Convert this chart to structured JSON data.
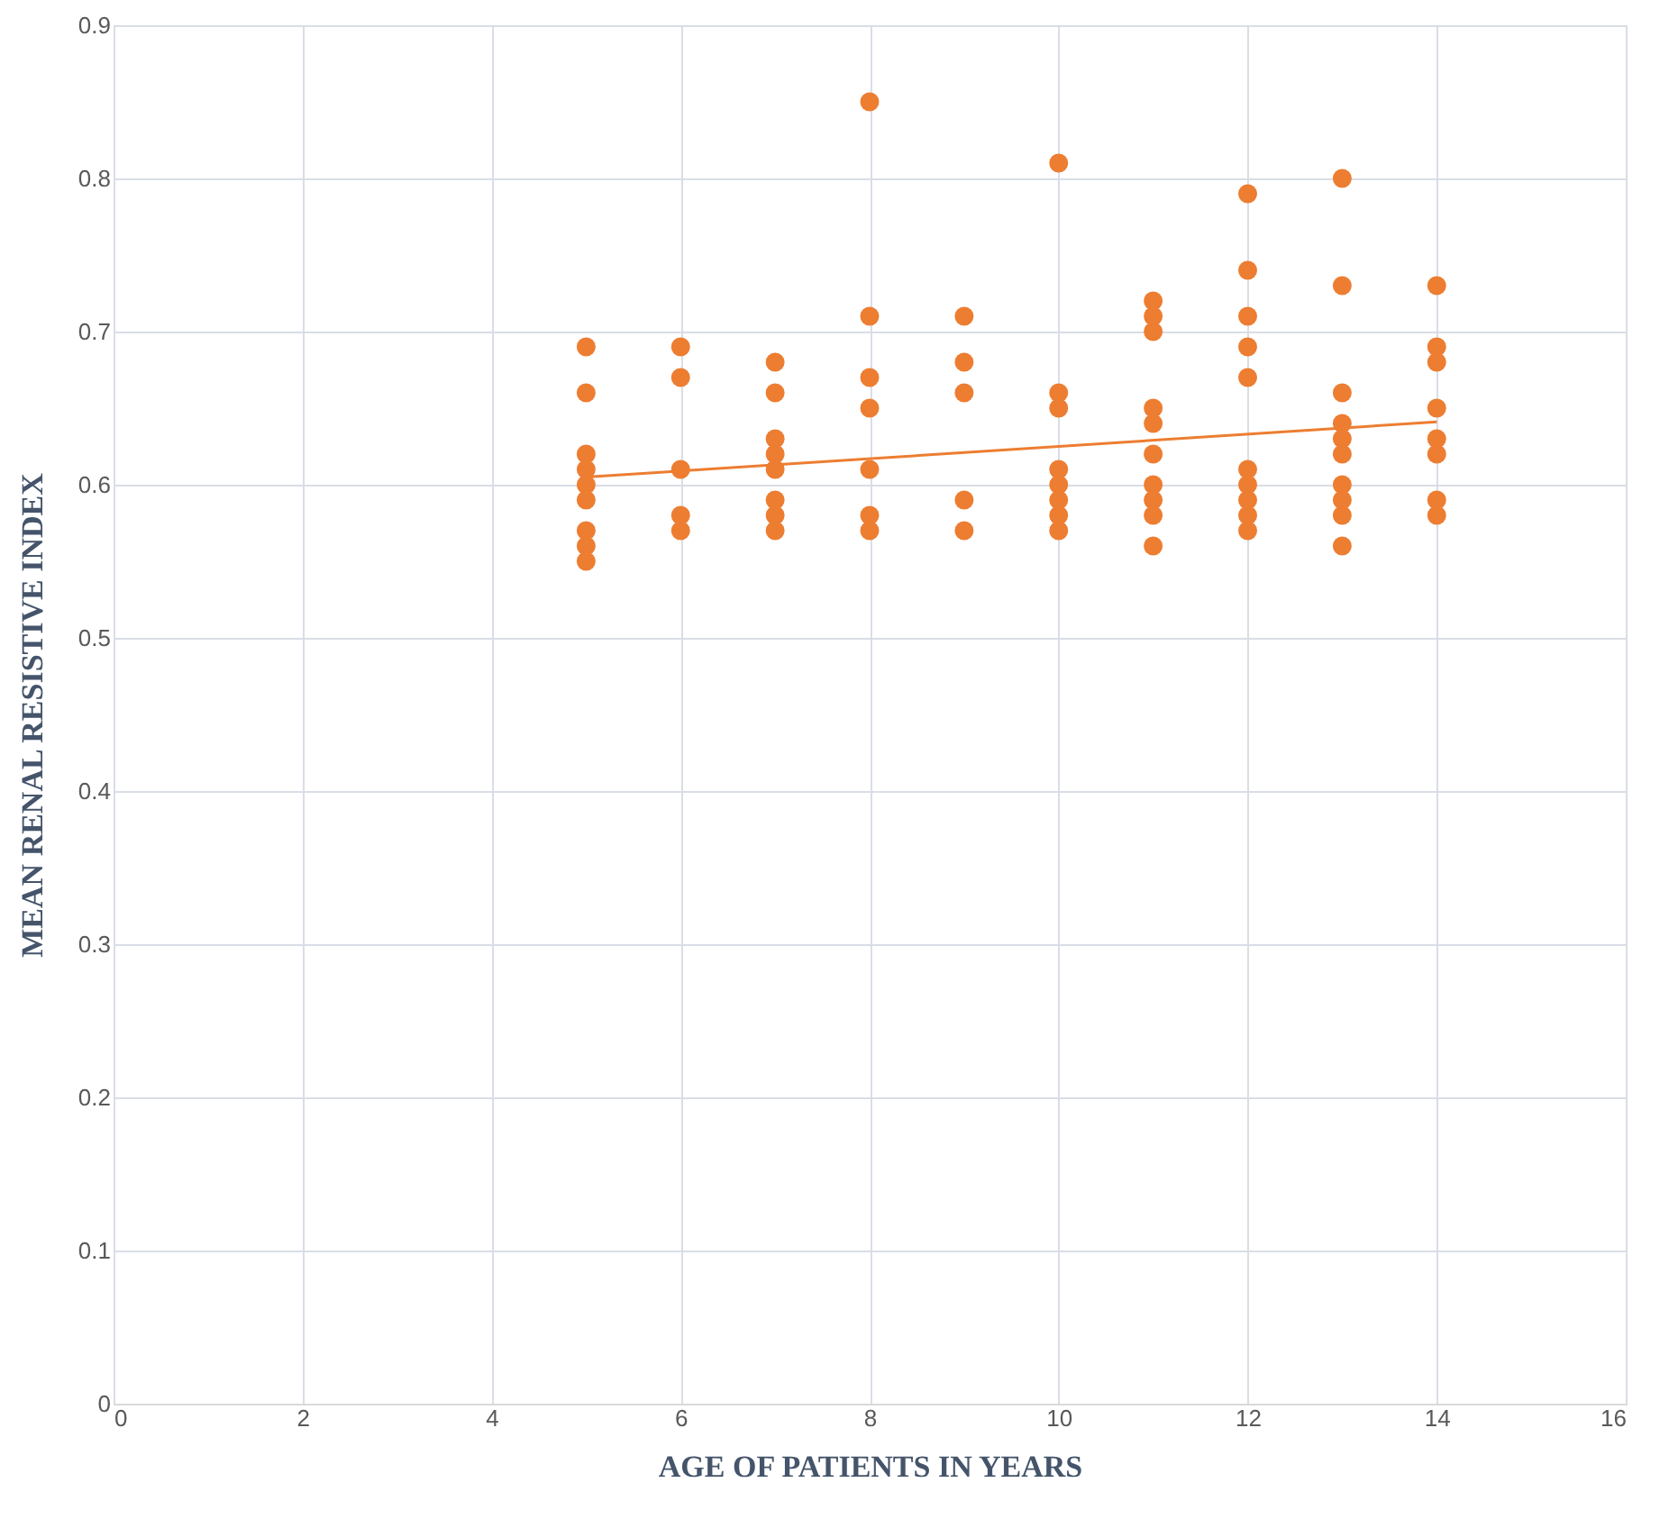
{
  "chart_data": {
    "type": "scatter",
    "xlabel": "AGE OF PATIENTS IN YEARS",
    "ylabel": "MEAN RENAL RESISTIVE INDEX",
    "xlim": [
      0,
      16
    ],
    "xticks": [
      0,
      2,
      4,
      6,
      8,
      10,
      12,
      14,
      16
    ],
    "ylim": [
      0,
      0.9
    ],
    "yticks": [
      0,
      0.1,
      0.2,
      0.3,
      0.4,
      0.5,
      0.6,
      0.7,
      0.8,
      0.9
    ],
    "grid": true,
    "series": [
      {
        "type": "scatter",
        "marker": "circle",
        "color": "#ed7d31",
        "x": [
          5,
          5,
          5,
          5,
          5,
          5,
          5,
          5,
          5,
          6,
          6,
          6,
          6,
          6,
          7,
          7,
          7,
          7,
          7,
          7,
          7,
          7,
          8,
          8,
          8,
          8,
          8,
          8,
          8,
          9,
          9,
          9,
          9,
          9,
          10,
          10,
          10,
          10,
          10,
          10,
          10,
          10,
          11,
          11,
          11,
          11,
          11,
          11,
          11,
          11,
          11,
          11,
          12,
          12,
          12,
          12,
          12,
          12,
          12,
          12,
          12,
          12,
          13,
          13,
          13,
          13,
          13,
          13,
          13,
          13,
          13,
          13,
          14,
          14,
          14,
          14,
          14,
          14,
          14,
          14
        ],
        "values": [
          0.69,
          0.66,
          0.62,
          0.61,
          0.6,
          0.59,
          0.57,
          0.56,
          0.55,
          0.69,
          0.67,
          0.61,
          0.58,
          0.57,
          0.68,
          0.66,
          0.63,
          0.62,
          0.61,
          0.59,
          0.58,
          0.57,
          0.85,
          0.71,
          0.67,
          0.65,
          0.61,
          0.58,
          0.57,
          0.71,
          0.68,
          0.66,
          0.59,
          0.57,
          0.81,
          0.66,
          0.65,
          0.61,
          0.6,
          0.59,
          0.58,
          0.57,
          0.72,
          0.71,
          0.7,
          0.65,
          0.64,
          0.62,
          0.6,
          0.59,
          0.58,
          0.56,
          0.79,
          0.74,
          0.71,
          0.69,
          0.67,
          0.61,
          0.6,
          0.59,
          0.58,
          0.57,
          0.8,
          0.73,
          0.66,
          0.64,
          0.63,
          0.62,
          0.6,
          0.59,
          0.58,
          0.56,
          0.73,
          0.69,
          0.68,
          0.65,
          0.63,
          0.62,
          0.59,
          0.58
        ]
      },
      {
        "type": "line",
        "color": "#ed7d31",
        "x": [
          5,
          14
        ],
        "values": [
          0.605,
          0.641
        ]
      }
    ]
  }
}
